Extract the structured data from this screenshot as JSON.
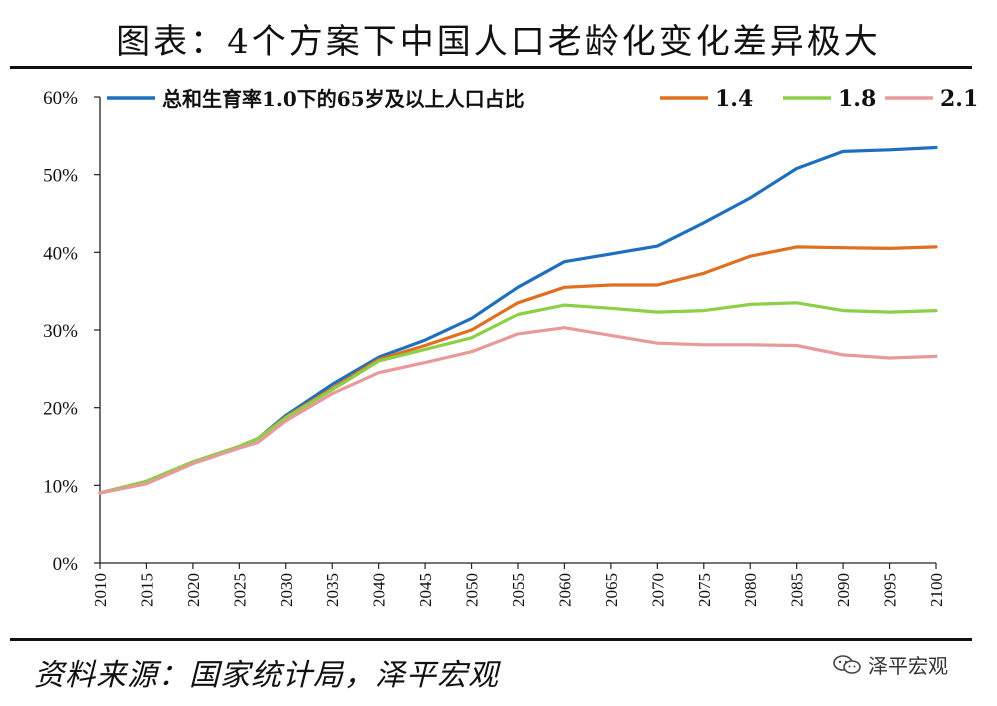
{
  "figure_title": "图表：4个方案下中国人口老龄化变化差异极大",
  "source": "资料来源：国家统计局，泽平宏观",
  "watermark": {
    "text": "泽平宏观",
    "icon": "wechat-icon"
  },
  "chart_data": {
    "type": "line",
    "title": "",
    "xlabel": "",
    "ylabel": "",
    "ylim": [
      0,
      60
    ],
    "xlim": [
      2010,
      2100
    ],
    "yticks": [
      0,
      10,
      20,
      30,
      40,
      50,
      60
    ],
    "ytick_labels": [
      "0%",
      "10%",
      "20%",
      "30%",
      "40%",
      "50%",
      "60%"
    ],
    "xticks": [
      2010,
      2015,
      2020,
      2025,
      2030,
      2035,
      2040,
      2045,
      2050,
      2055,
      2060,
      2065,
      2070,
      2075,
      2080,
      2085,
      2090,
      2095,
      2100
    ],
    "xtick_labels": [
      "2010",
      "2015",
      "2020",
      "2025",
      "2030",
      "2035",
      "2040",
      "2045",
      "2050",
      "2055",
      "2060",
      "2065",
      "2070",
      "2075",
      "2080",
      "2085",
      "2090",
      "2095",
      "2100"
    ],
    "grid": false,
    "legend_position": "top",
    "x": [
      2010,
      2015,
      2020,
      2025,
      2027,
      2030,
      2035,
      2040,
      2045,
      2050,
      2055,
      2060,
      2065,
      2070,
      2075,
      2080,
      2085,
      2090,
      2095,
      2100
    ],
    "series": [
      {
        "name": "总和生育率1.0下的65岁及以上人口占比",
        "color": "#1f6fbf",
        "values": [
          9.0,
          10.5,
          13.0,
          15.0,
          16.0,
          19.0,
          23.0,
          26.5,
          28.7,
          31.5,
          35.5,
          38.8,
          39.8,
          40.8,
          43.8,
          47.0,
          50.8,
          53.0,
          53.2,
          53.5
        ]
      },
      {
        "name": "1.4",
        "color": "#e07020",
        "values": [
          9.0,
          10.5,
          13.0,
          15.0,
          16.0,
          18.8,
          22.5,
          26.2,
          28.0,
          30.0,
          33.5,
          35.5,
          35.8,
          35.8,
          37.3,
          39.5,
          40.7,
          40.6,
          40.5,
          40.7
        ]
      },
      {
        "name": "1.8",
        "color": "#8ccf48",
        "values": [
          9.0,
          10.5,
          13.0,
          15.0,
          16.0,
          18.7,
          22.3,
          26.0,
          27.5,
          29.0,
          32.0,
          33.2,
          32.8,
          32.3,
          32.5,
          33.3,
          33.5,
          32.5,
          32.3,
          32.5
        ]
      },
      {
        "name": "2.1",
        "color": "#e89a9a",
        "values": [
          9.0,
          10.2,
          12.8,
          14.8,
          15.5,
          18.3,
          21.8,
          24.5,
          25.8,
          27.2,
          29.5,
          30.3,
          29.3,
          28.3,
          28.1,
          28.1,
          28.0,
          26.8,
          26.4,
          26.6
        ]
      }
    ]
  }
}
